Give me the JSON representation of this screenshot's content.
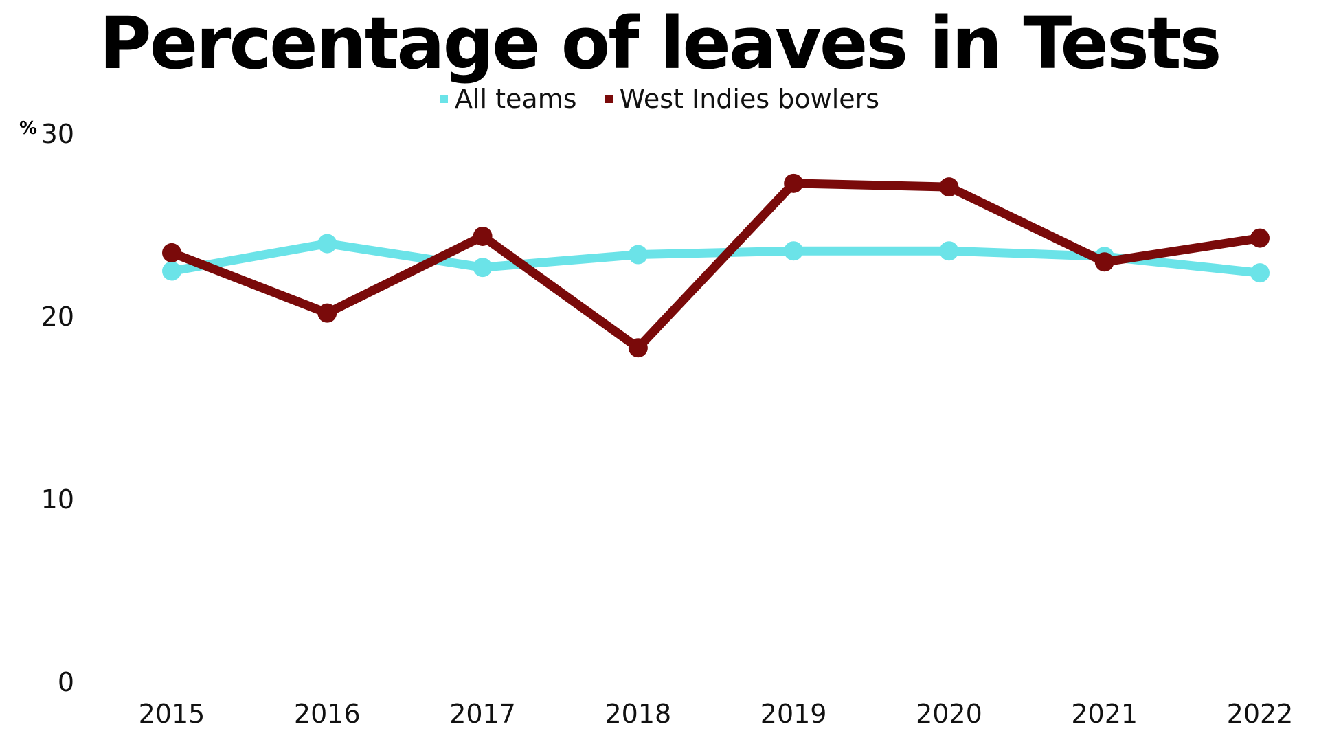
{
  "chart_data": {
    "type": "line",
    "title": "Percentage of leaves in Tests",
    "ylabel": "%",
    "xlabel": "",
    "categories": [
      "2015",
      "2016",
      "2017",
      "2018",
      "2019",
      "2020",
      "2021",
      "2022"
    ],
    "ylim": [
      0,
      30
    ],
    "yticks": [
      "0",
      "10",
      "20",
      "30"
    ],
    "grid": false,
    "legend_position": "top-center",
    "series": [
      {
        "name": "All teams",
        "color": "#6BE3E8",
        "values": [
          22.5,
          24.0,
          22.7,
          23.4,
          23.6,
          23.6,
          23.3,
          22.4
        ]
      },
      {
        "name": "West Indies bowlers",
        "color": "#7A0A0A",
        "values": [
          23.5,
          20.2,
          24.4,
          18.3,
          27.3,
          27.1,
          23.0,
          24.3
        ]
      }
    ]
  }
}
